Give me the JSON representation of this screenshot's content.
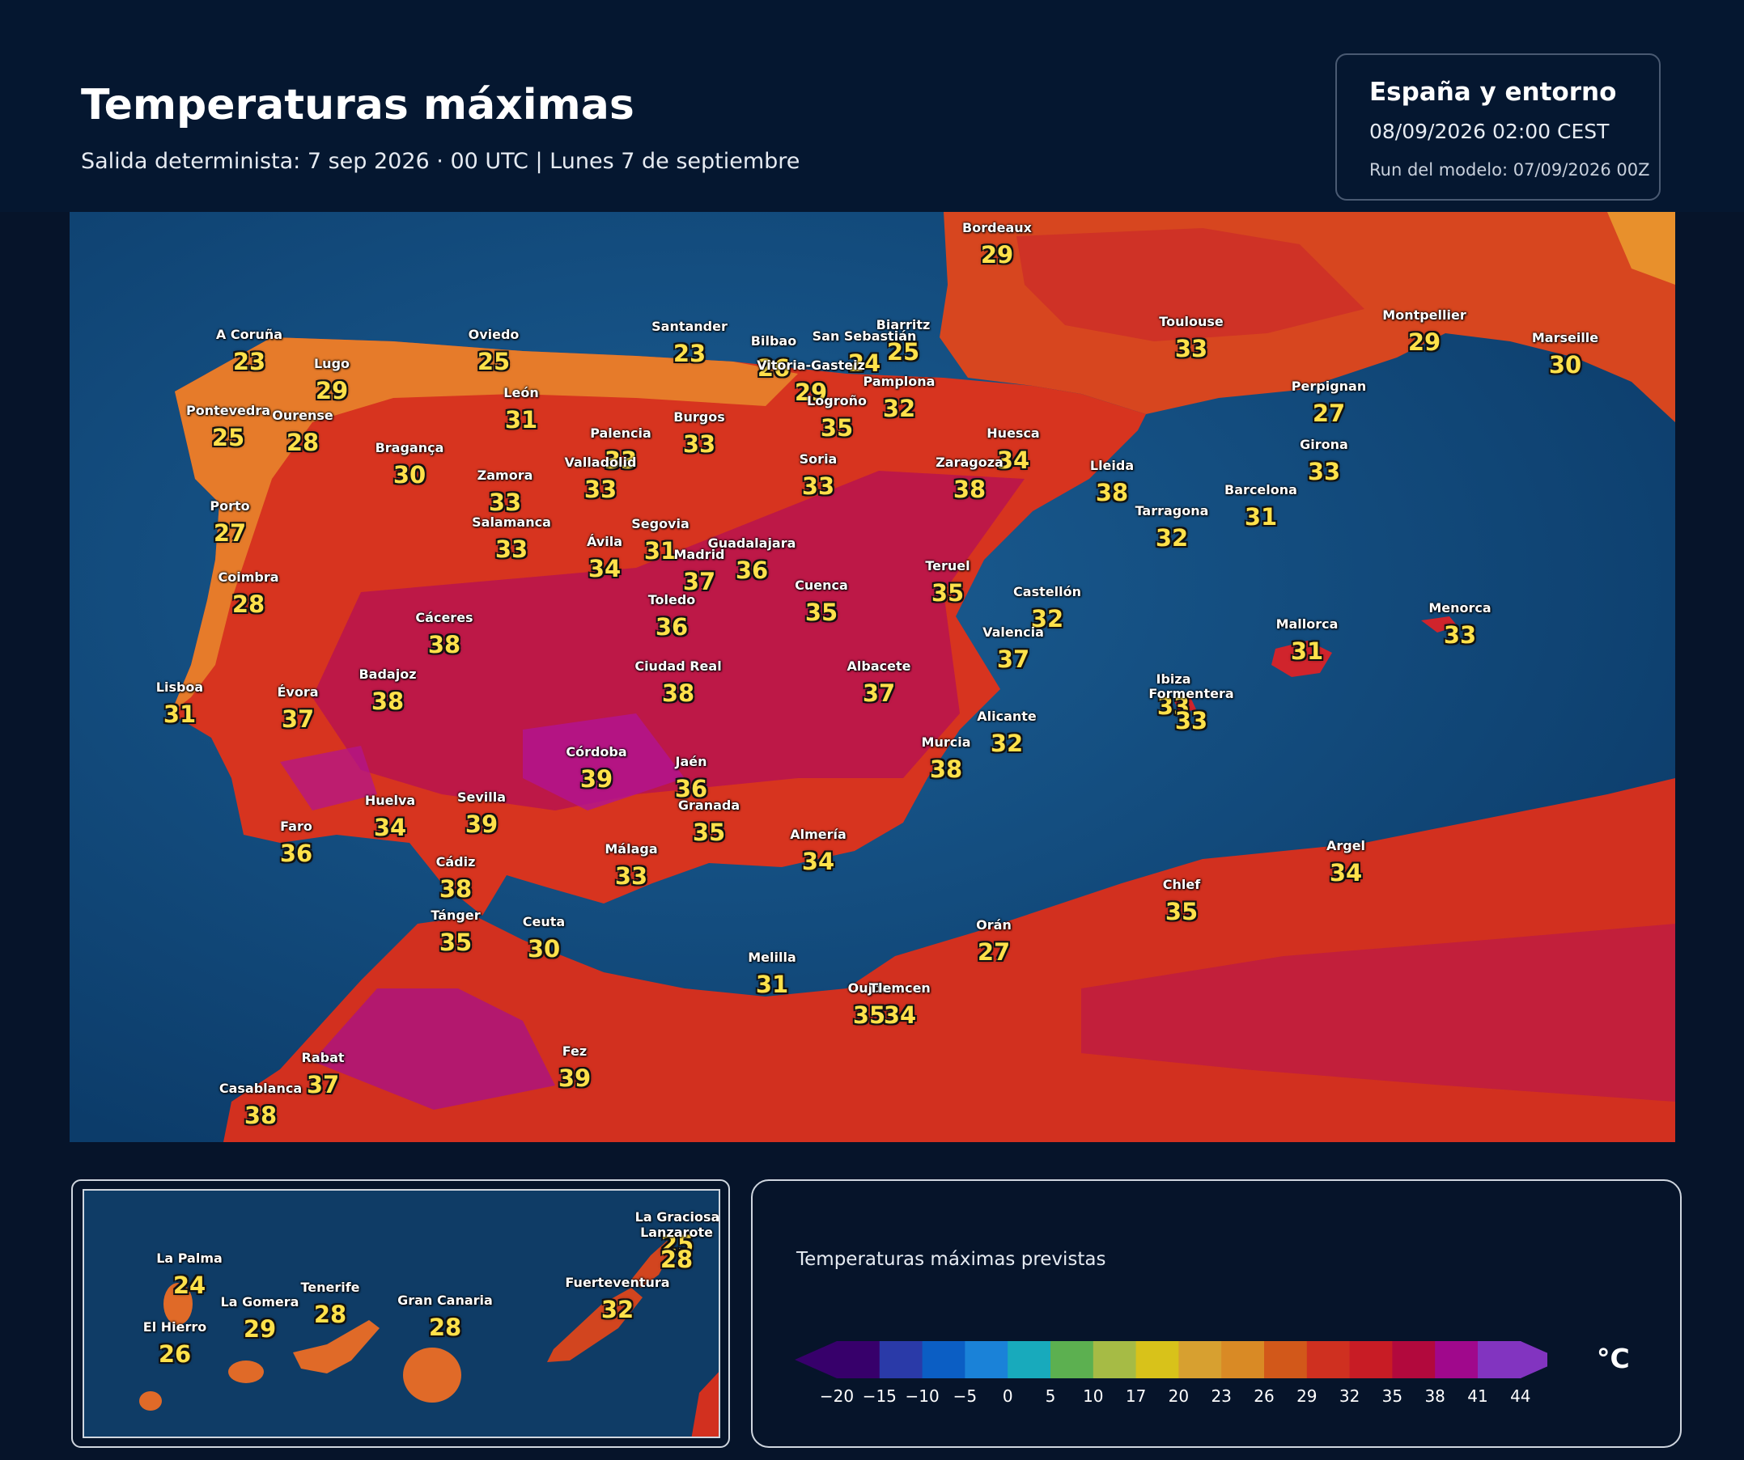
{
  "header": {
    "title": "Temperaturas máximas",
    "subtitle": "Salida determinista: 7 sep 2026 · 00 UTC  |  Lunes 7 de septiembre"
  },
  "infobox": {
    "region": "España y entorno",
    "valid_time": "08/09/2026  02:00 CEST",
    "model_run": "Run del modelo: 07/09/2026 00Z"
  },
  "cities": [
    {
      "name": "Bordeaux",
      "temp": "29"
    },
    {
      "name": "Toulouse",
      "temp": "33"
    },
    {
      "name": "Montpellier",
      "temp": "29"
    },
    {
      "name": "Marseille",
      "temp": "30"
    },
    {
      "name": "Perpignan",
      "temp": "27"
    },
    {
      "name": "Biarritz",
      "temp": "25"
    },
    {
      "name": "A Coruña",
      "temp": "23"
    },
    {
      "name": "Lugo",
      "temp": "29"
    },
    {
      "name": "Oviedo",
      "temp": "25"
    },
    {
      "name": "Santander",
      "temp": "23"
    },
    {
      "name": "Bilbao",
      "temp": "26"
    },
    {
      "name": "San Sebastián",
      "temp": "24"
    },
    {
      "name": "Vitoria-Gasteiz",
      "temp": "29"
    },
    {
      "name": "Pamplona",
      "temp": "32"
    },
    {
      "name": "Logroño",
      "temp": "35"
    },
    {
      "name": "Pontevedra",
      "temp": "25"
    },
    {
      "name": "Ourense",
      "temp": "28"
    },
    {
      "name": "León",
      "temp": "31"
    },
    {
      "name": "Burgos",
      "temp": "33"
    },
    {
      "name": "Palencia",
      "temp": "33"
    },
    {
      "name": "Bragança",
      "temp": "30"
    },
    {
      "name": "Zamora",
      "temp": "33"
    },
    {
      "name": "Valladolid",
      "temp": "33"
    },
    {
      "name": "Soria",
      "temp": "33"
    },
    {
      "name": "Huesca",
      "temp": "34"
    },
    {
      "name": "Zaragoza",
      "temp": "38"
    },
    {
      "name": "Lleida",
      "temp": "38"
    },
    {
      "name": "Girona",
      "temp": "33"
    },
    {
      "name": "Barcelona",
      "temp": "31"
    },
    {
      "name": "Tarragona",
      "temp": "32"
    },
    {
      "name": "Porto",
      "temp": "27"
    },
    {
      "name": "Salamanca",
      "temp": "33"
    },
    {
      "name": "Segovia",
      "temp": "31"
    },
    {
      "name": "Ávila",
      "temp": "34"
    },
    {
      "name": "Guadalajara",
      "temp": "36"
    },
    {
      "name": "Madrid",
      "temp": "37"
    },
    {
      "name": "Coimbra",
      "temp": "28"
    },
    {
      "name": "Teruel",
      "temp": "35"
    },
    {
      "name": "Cuenca",
      "temp": "35"
    },
    {
      "name": "Castellón",
      "temp": "32"
    },
    {
      "name": "Toledo",
      "temp": "36"
    },
    {
      "name": "Cáceres",
      "temp": "38"
    },
    {
      "name": "Valencia",
      "temp": "37"
    },
    {
      "name": "Mallorca",
      "temp": "31"
    },
    {
      "name": "Menorca",
      "temp": "33"
    },
    {
      "name": "Lisboa",
      "temp": "31"
    },
    {
      "name": "Badajoz",
      "temp": "38"
    },
    {
      "name": "Évora",
      "temp": "37"
    },
    {
      "name": "Ciudad Real",
      "temp": "38"
    },
    {
      "name": "Albacete",
      "temp": "37"
    },
    {
      "name": "Ibiza",
      "temp": "33"
    },
    {
      "name": "Formentera",
      "temp": "33"
    },
    {
      "name": "Alicante",
      "temp": "32"
    },
    {
      "name": "Murcia",
      "temp": "38"
    },
    {
      "name": "Córdoba",
      "temp": "39"
    },
    {
      "name": "Jaén",
      "temp": "36"
    },
    {
      "name": "Granada",
      "temp": "35"
    },
    {
      "name": "Huelva",
      "temp": "34"
    },
    {
      "name": "Sevilla",
      "temp": "39"
    },
    {
      "name": "Faro",
      "temp": "36"
    },
    {
      "name": "Almería",
      "temp": "34"
    },
    {
      "name": "Málaga",
      "temp": "33"
    },
    {
      "name": "Cádiz",
      "temp": "38"
    },
    {
      "name": "Argel",
      "temp": "34"
    },
    {
      "name": "Chlef",
      "temp": "35"
    },
    {
      "name": "Tánger",
      "temp": "35"
    },
    {
      "name": "Ceuta",
      "temp": "30"
    },
    {
      "name": "Orán",
      "temp": "27"
    },
    {
      "name": "Melilla",
      "temp": "31"
    },
    {
      "name": "Oujda",
      "temp": "35"
    },
    {
      "name": "Tlemcen",
      "temp": "34"
    },
    {
      "name": "Rabat",
      "temp": "37"
    },
    {
      "name": "Fez",
      "temp": "39"
    },
    {
      "name": "Casablanca",
      "temp": "38"
    }
  ],
  "canarias": [
    {
      "name": "La Graciosa",
      "temp": "25"
    },
    {
      "name": "Lanzarote",
      "temp": "28"
    },
    {
      "name": "La Palma",
      "temp": "24"
    },
    {
      "name": "Fuerteventura",
      "temp": "32"
    },
    {
      "name": "Tenerife",
      "temp": "28"
    },
    {
      "name": "La Gomera",
      "temp": "29"
    },
    {
      "name": "Gran Canaria",
      "temp": "28"
    },
    {
      "name": "El Hierro",
      "temp": "26"
    }
  ],
  "legend": {
    "title": "Temperaturas máximas previstas",
    "unit": "°C",
    "ticks": [
      "−20",
      "−15",
      "−10",
      "−5",
      "0",
      "5",
      "10",
      "17",
      "20",
      "23",
      "26",
      "29",
      "32",
      "35",
      "38",
      "41",
      "44"
    ],
    "colors": [
      "#37006b",
      "#2a3aa8",
      "#0b5ec4",
      "#1a82d8",
      "#18aabc",
      "#5cb050",
      "#a6bb45",
      "#d8c21a",
      "#d7a030",
      "#d98a25",
      "#d2581a",
      "#cf3020",
      "#c81c25",
      "#b2093d",
      "#a0088c",
      "#8234c0"
    ]
  }
}
